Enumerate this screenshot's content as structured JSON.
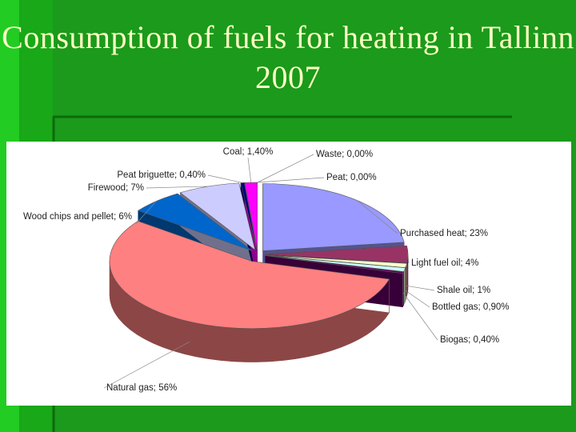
{
  "chart_data": {
    "type": "pie3d",
    "title": "Consumption of fuels for heating in Tallinn 2007",
    "values": [
      23,
      4,
      1,
      0.9,
      0.4,
      56,
      6,
      7,
      0.4,
      1.4,
      0,
      0
    ],
    "value_labels": [
      "Purchased heat; 23%",
      "Light fuel oil; 4%",
      "Shale oil; 1%",
      "Bottled gas; 0,90%",
      "Biogas; 0,40%",
      "Natural gas; 56%",
      "Wood chips and pellet; 6%",
      "Firewood; 7%",
      "Peat briguette; 0,40%",
      "Coal; 1,40%",
      "Waste; 0,00%",
      "Peat; 0,00%"
    ],
    "colors": [
      "#9999ff",
      "#993366",
      "#ffffcc",
      "#ccffff",
      "#660066",
      "#ff8080",
      "#0066cc",
      "#ccccff",
      "#000080",
      "#ff00ff",
      "#ffff00",
      "#00ffff"
    ]
  }
}
